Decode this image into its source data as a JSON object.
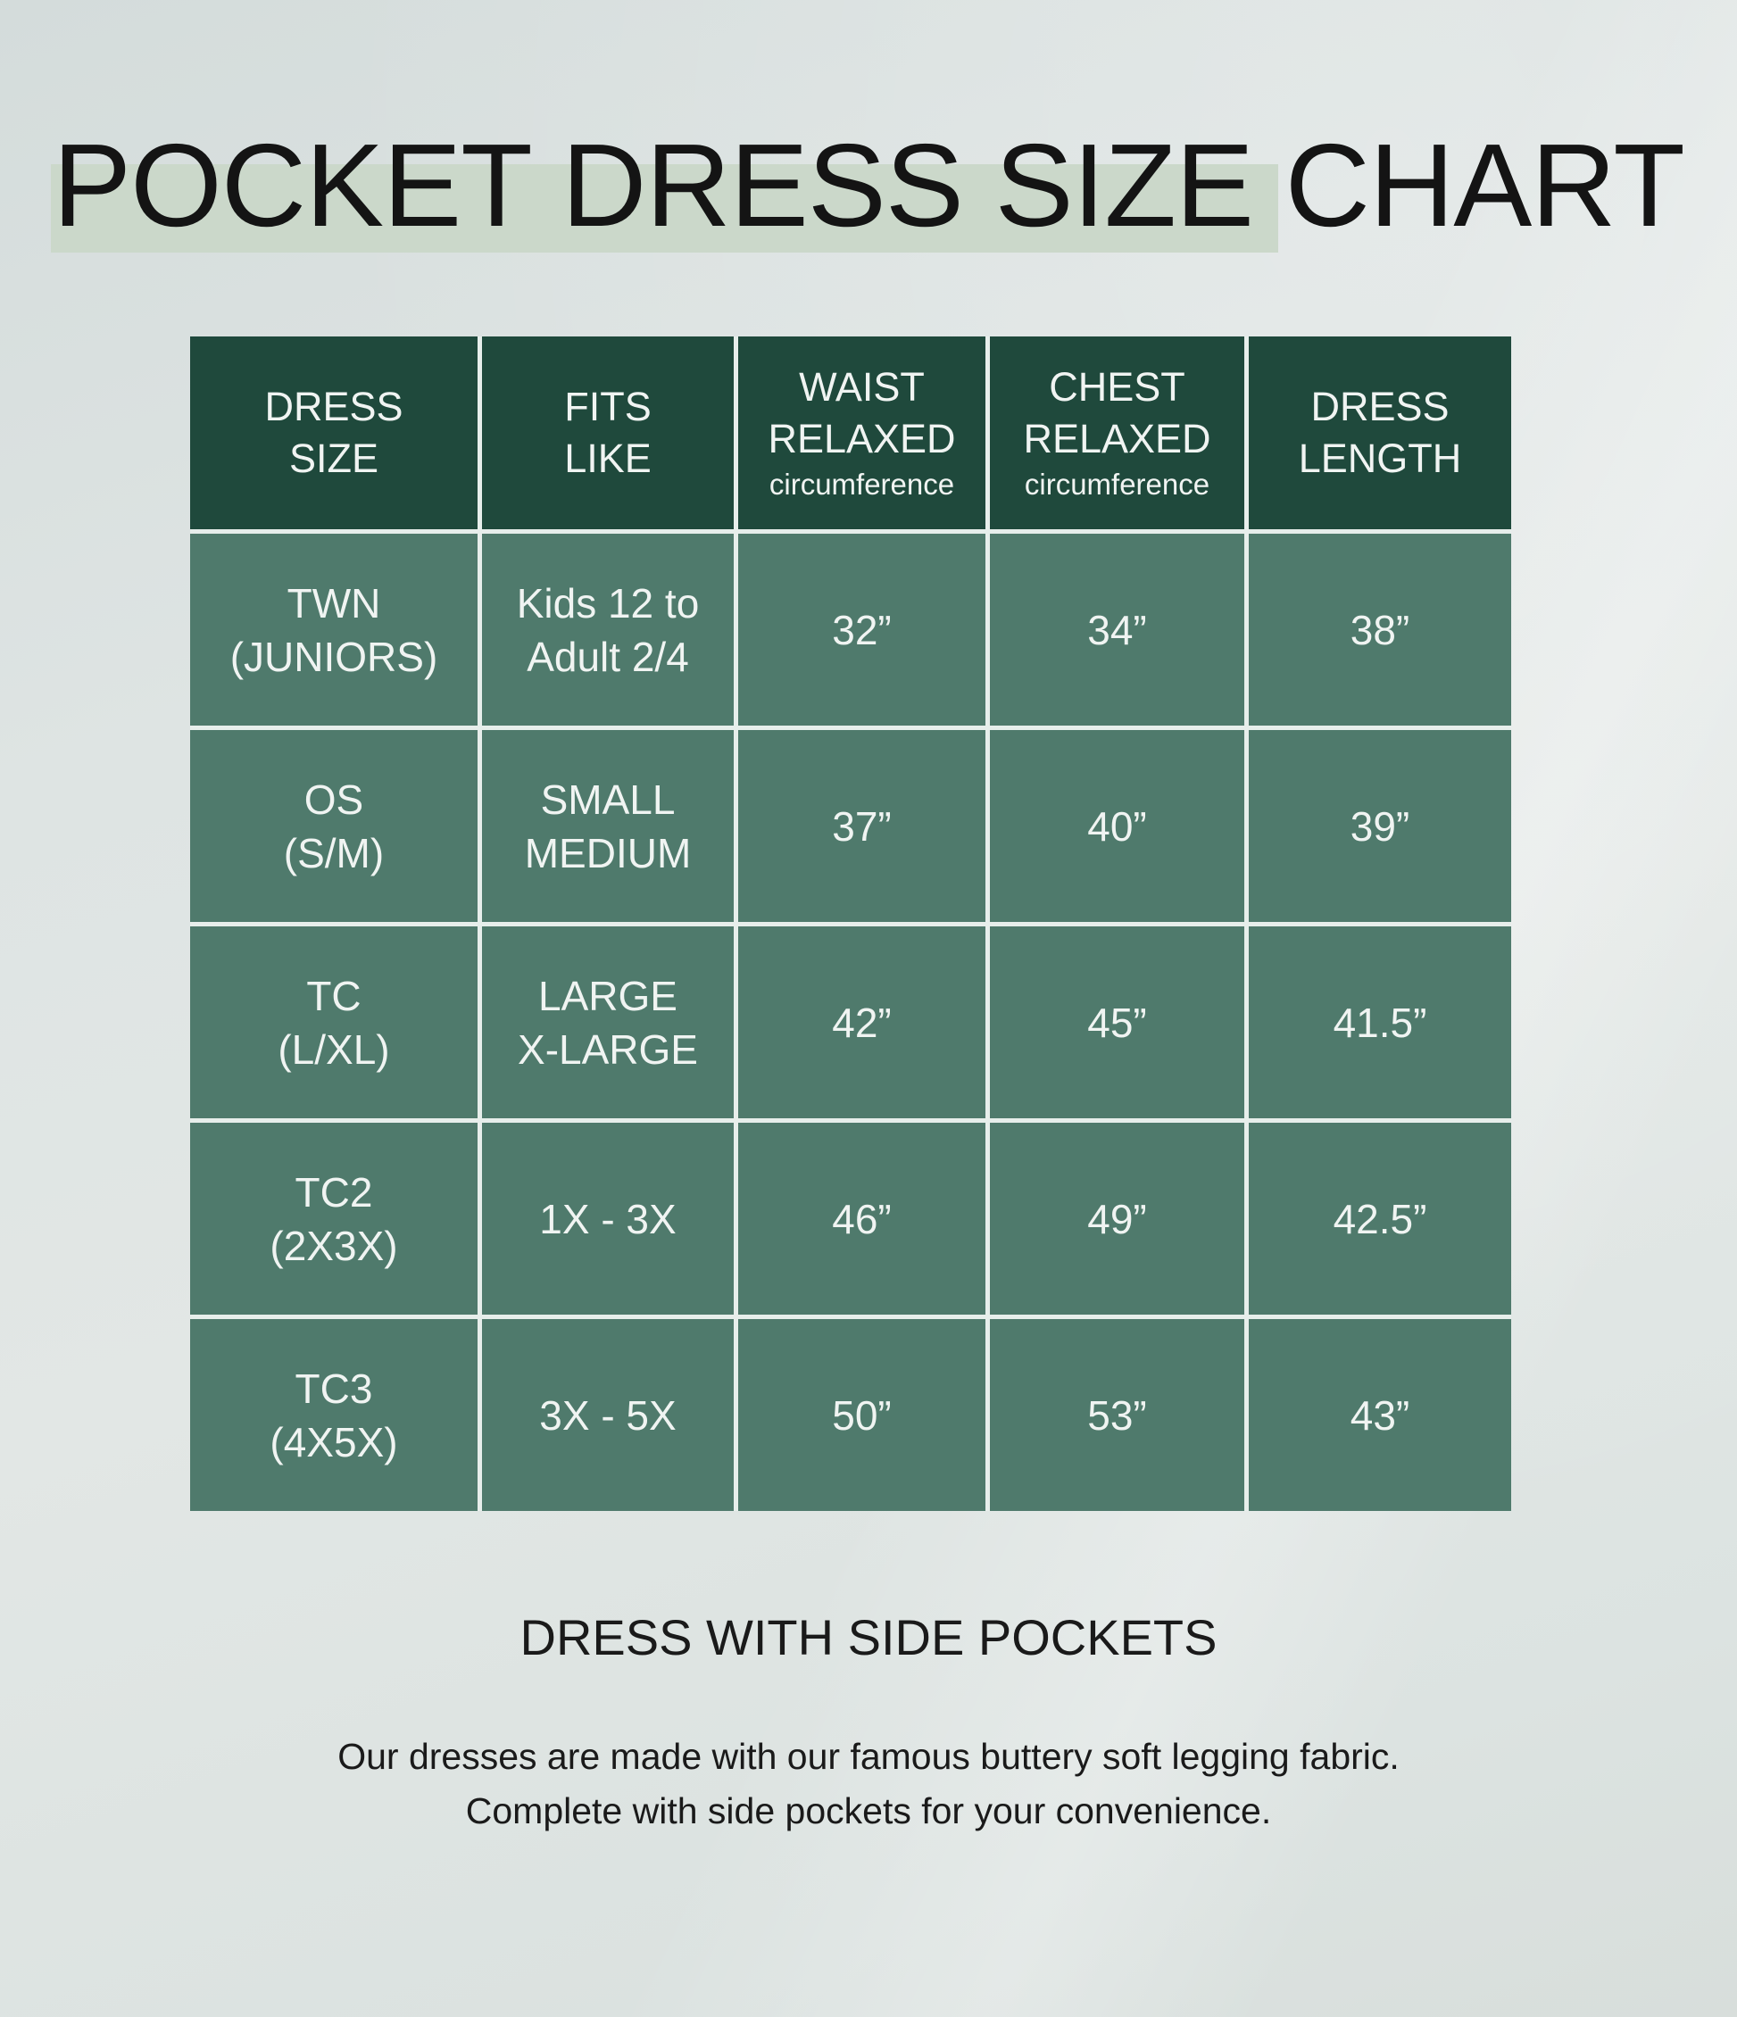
{
  "chart_data": {
    "type": "table",
    "title": "POCKET DRESS SIZE CHART",
    "columns": [
      {
        "lines": [
          "DRESS",
          "SIZE"
        ]
      },
      {
        "lines": [
          "FITS",
          "LIKE"
        ]
      },
      {
        "lines": [
          "WAIST",
          "RELAXED"
        ],
        "sub": "circumference"
      },
      {
        "lines": [
          "CHEST",
          "RELAXED"
        ],
        "sub": "circumference"
      },
      {
        "lines": [
          "DRESS",
          "LENGTH"
        ]
      }
    ],
    "rows": [
      {
        "size": [
          "TWN",
          "(JUNIORS)"
        ],
        "fits": [
          "Kids 12 to",
          "Adult 2/4"
        ],
        "waist": "32”",
        "chest": "34”",
        "length": "38”"
      },
      {
        "size": [
          "OS",
          "(S/M)"
        ],
        "fits": [
          "SMALL",
          "MEDIUM"
        ],
        "waist": "37”",
        "chest": "40”",
        "length": "39”"
      },
      {
        "size": [
          "TC",
          "(L/XL)"
        ],
        "fits": [
          "LARGE",
          "X-LARGE"
        ],
        "waist": "42”",
        "chest": "45”",
        "length": "41.5”"
      },
      {
        "size": [
          "TC2",
          "(2X3X)"
        ],
        "fits": [
          "1X - 3X"
        ],
        "waist": "46”",
        "chest": "49”",
        "length": "42.5”"
      },
      {
        "size": [
          "TC3",
          "(4X5X)"
        ],
        "fits": [
          "3X - 5X"
        ],
        "waist": "50”",
        "chest": "53”",
        "length": "43”"
      }
    ]
  },
  "footer": {
    "heading": "DRESS WITH SIDE POCKETS",
    "line1": "Our dresses are made with our famous buttery soft legging fabric.",
    "line2": "Complete with side pockets for your convenience."
  },
  "colors": {
    "page_bg": "#dde3e2",
    "title_text": "#141414",
    "title_highlight": "#cbd8ca",
    "header_bg": "#1f493c",
    "row_bg": "#4f7a6c",
    "grid_line": "#e7eeeb",
    "cell_text": "#f0f4f2",
    "body_text": "#1a1a1a"
  }
}
